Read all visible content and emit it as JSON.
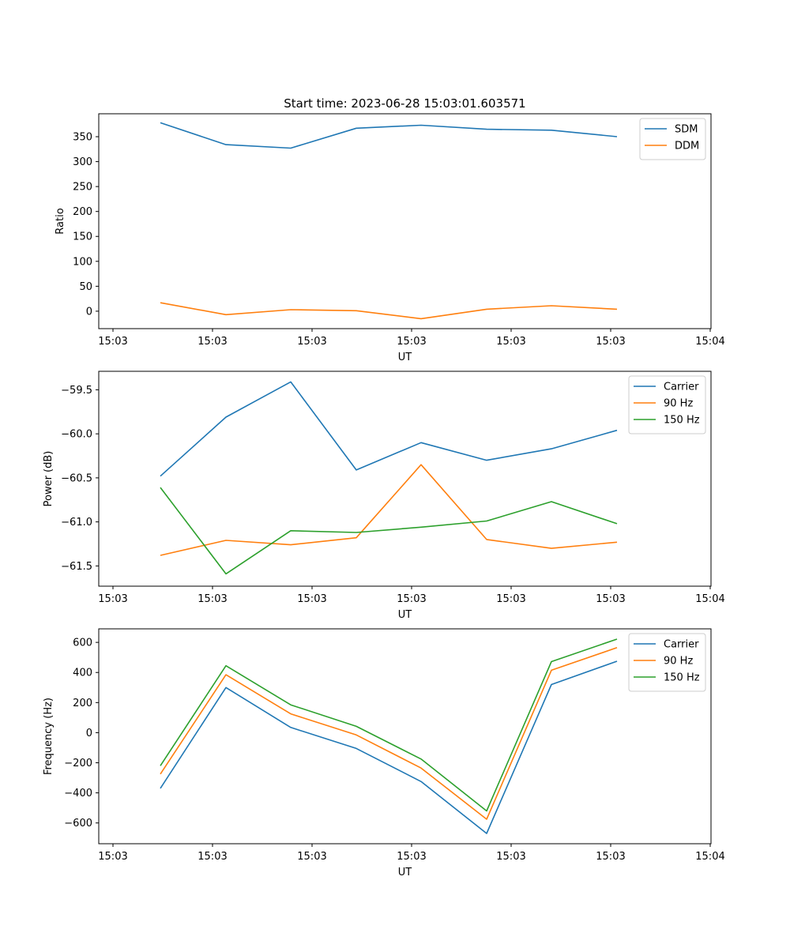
{
  "figure_title": "Start time: 2023-06-28 15:03:01.603571",
  "chart_data": [
    {
      "type": "line",
      "title": "Start time: 2023-06-28 15:03:01.603571",
      "xlabel": "UT",
      "ylabel": "Ratio",
      "x_tick_labels": [
        "15:03",
        "15:03",
        "15:03",
        "15:03",
        "15:03",
        "15:03",
        "15:04"
      ],
      "x_points": 8,
      "y_ticks": [
        0,
        50,
        100,
        150,
        200,
        250,
        300,
        350
      ],
      "ylim": [
        -35,
        396
      ],
      "legend": "top-right",
      "grid": false,
      "series": [
        {
          "name": "SDM",
          "color": "#1f77b4",
          "values": [
            378,
            334,
            327,
            367,
            373,
            365,
            363,
            350
          ]
        },
        {
          "name": "DDM",
          "color": "#ff7f0e",
          "values": [
            17,
            -7,
            3,
            1,
            -15,
            4,
            11,
            4
          ]
        }
      ]
    },
    {
      "type": "line",
      "title": "",
      "xlabel": "UT",
      "ylabel": "Power (dB)",
      "x_tick_labels": [
        "15:03",
        "15:03",
        "15:03",
        "15:03",
        "15:03",
        "15:03",
        "15:04"
      ],
      "x_points": 8,
      "y_ticks": [
        -61.5,
        -61.0,
        -60.5,
        -60.0,
        -59.5
      ],
      "y_tick_labels": [
        "−61.5",
        "−61.0",
        "−60.5",
        "−60.0",
        "−59.5"
      ],
      "ylim": [
        -61.73,
        -59.29
      ],
      "legend": "top-right",
      "grid": false,
      "series": [
        {
          "name": "Carrier",
          "color": "#1f77b4",
          "values": [
            -60.48,
            -59.81,
            -59.41,
            -60.41,
            -60.1,
            -60.3,
            -60.17,
            -59.96
          ]
        },
        {
          "name": "90 Hz",
          "color": "#ff7f0e",
          "values": [
            -61.38,
            -61.21,
            -61.26,
            -61.18,
            -60.35,
            -61.2,
            -61.3,
            -61.23
          ]
        },
        {
          "name": "150 Hz",
          "color": "#2ca02c",
          "values": [
            -60.61,
            -61.59,
            -61.1,
            -61.12,
            -61.06,
            -60.99,
            -60.77,
            -61.02
          ]
        }
      ]
    },
    {
      "type": "line",
      "title": "",
      "xlabel": "UT",
      "ylabel": "Frequency (Hz)",
      "x_tick_labels": [
        "15:03",
        "15:03",
        "15:03",
        "15:03",
        "15:03",
        "15:03",
        "15:04"
      ],
      "x_points": 8,
      "y_ticks": [
        -600,
        -400,
        -200,
        0,
        200,
        400,
        600
      ],
      "y_tick_labels": [
        "−600",
        "−400",
        "−200",
        "0",
        "200",
        "400",
        "600"
      ],
      "ylim": [
        -738,
        690
      ],
      "legend": "top-right",
      "grid": false,
      "series": [
        {
          "name": "Carrier",
          "color": "#1f77b4",
          "values": [
            -370,
            300,
            35,
            -105,
            -325,
            -670,
            320,
            475
          ]
        },
        {
          "name": "90 Hz",
          "color": "#ff7f0e",
          "values": [
            -275,
            385,
            125,
            -15,
            -235,
            -575,
            415,
            565
          ]
        },
        {
          "name": "150 Hz",
          "color": "#2ca02c",
          "values": [
            -220,
            445,
            185,
            42,
            -175,
            -520,
            472,
            622
          ]
        }
      ]
    }
  ]
}
